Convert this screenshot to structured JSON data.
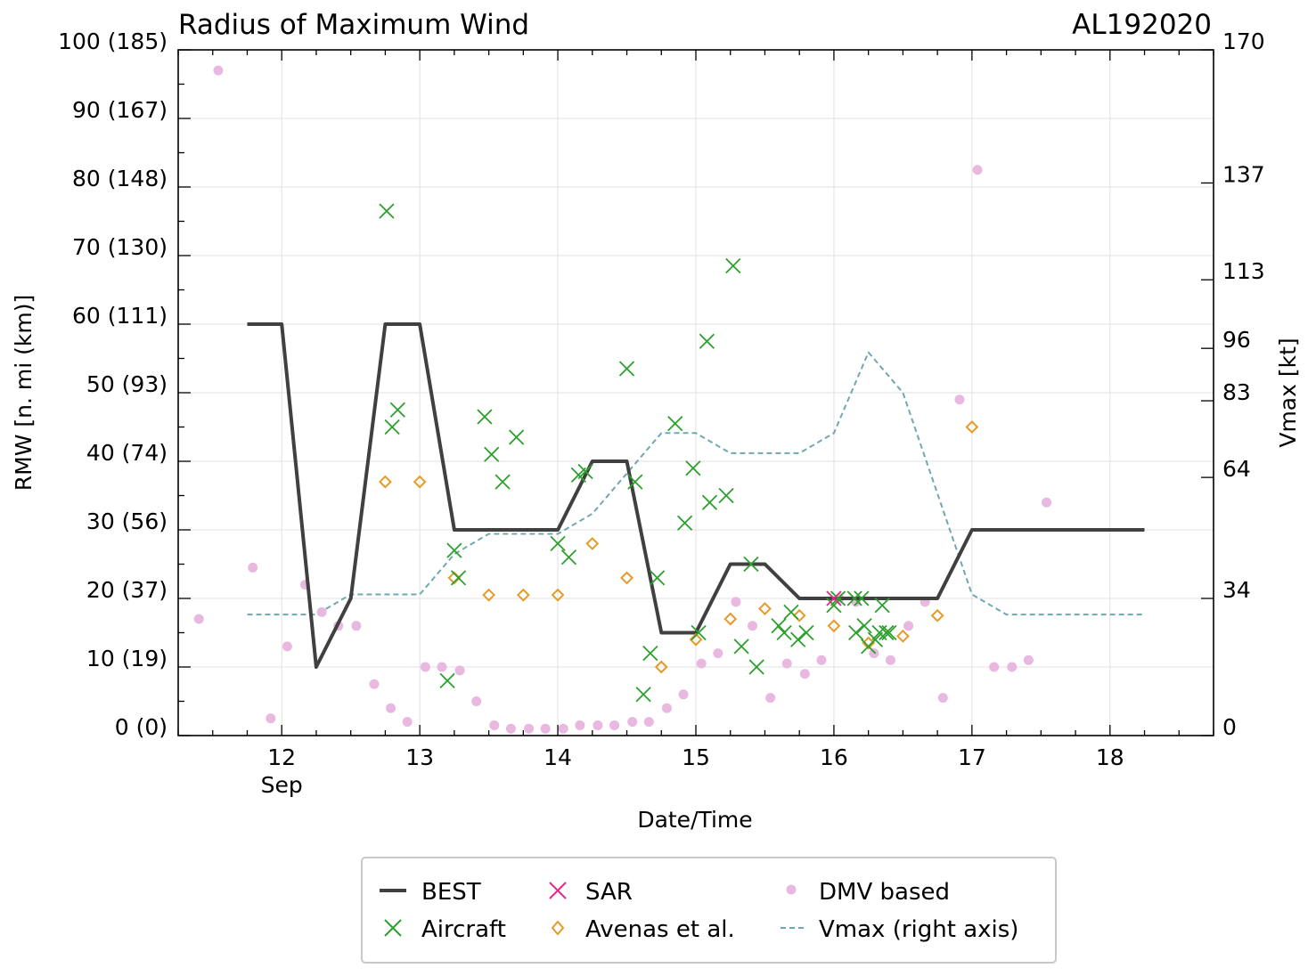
{
  "chart_data": {
    "type": "scatter",
    "title": "Radius of Maximum Wind",
    "storm_id": "AL192020",
    "xlabel": "Date/Time",
    "ylabel": "RMW [n. mi (km)]",
    "y2label": "Vmax [kt]",
    "xlim": [
      11.25,
      18.75
    ],
    "ylim": [
      0,
      100
    ],
    "y2lim": [
      0,
      170
    ],
    "grid": true,
    "legend_position": "bottom",
    "x_ticks": [
      {
        "value": 12,
        "label": "12",
        "sublabel": "Sep"
      },
      {
        "value": 13,
        "label": "13"
      },
      {
        "value": 14,
        "label": "14"
      },
      {
        "value": 15,
        "label": "15"
      },
      {
        "value": 16,
        "label": "16"
      },
      {
        "value": 17,
        "label": "17"
      },
      {
        "value": 18,
        "label": "18"
      }
    ],
    "y_ticks": [
      {
        "value": 0,
        "label": "0 (0)"
      },
      {
        "value": 10,
        "label": "10 (19)"
      },
      {
        "value": 20,
        "label": "20 (37)"
      },
      {
        "value": 30,
        "label": "30 (56)"
      },
      {
        "value": 40,
        "label": "40 (74)"
      },
      {
        "value": 50,
        "label": "50 (93)"
      },
      {
        "value": 60,
        "label": "60 (111)"
      },
      {
        "value": 70,
        "label": "70 (130)"
      },
      {
        "value": 80,
        "label": "80 (148)"
      },
      {
        "value": 90,
        "label": "90 (167)"
      },
      {
        "value": 100,
        "label": "100 (185)"
      }
    ],
    "y2_ticks": [
      {
        "value": 0,
        "label": "0"
      },
      {
        "value": 34,
        "label": "34"
      },
      {
        "value": 64,
        "label": "64"
      },
      {
        "value": 83,
        "label": "83"
      },
      {
        "value": 96,
        "label": "96"
      },
      {
        "value": 113,
        "label": "113"
      },
      {
        "value": 137,
        "label": "137"
      },
      {
        "value": 170,
        "label": "170"
      }
    ],
    "series": [
      {
        "name": "BEST",
        "kind": "line",
        "color": "#404040",
        "points": [
          [
            11.75,
            60
          ],
          [
            12.0,
            60
          ],
          [
            12.25,
            10
          ],
          [
            12.5,
            20
          ],
          [
            12.75,
            60
          ],
          [
            13.0,
            60
          ],
          [
            13.25,
            30
          ],
          [
            13.5,
            30
          ],
          [
            13.75,
            30
          ],
          [
            14.0,
            30
          ],
          [
            14.25,
            40
          ],
          [
            14.5,
            40
          ],
          [
            14.75,
            15
          ],
          [
            15.0,
            15
          ],
          [
            15.25,
            25
          ],
          [
            15.5,
            25
          ],
          [
            15.75,
            20
          ],
          [
            16.0,
            20
          ],
          [
            16.25,
            20
          ],
          [
            16.5,
            20
          ],
          [
            16.75,
            20
          ],
          [
            17.0,
            30
          ],
          [
            17.25,
            30
          ],
          [
            17.5,
            30
          ],
          [
            17.75,
            30
          ],
          [
            18.0,
            30
          ],
          [
            18.25,
            30
          ]
        ]
      },
      {
        "name": "Aircraft",
        "kind": "x",
        "color": "#2ca02c",
        "points": [
          [
            12.76,
            76.5
          ],
          [
            12.8,
            45
          ],
          [
            12.84,
            47.5
          ],
          [
            13.2,
            8
          ],
          [
            13.25,
            27
          ],
          [
            13.28,
            23
          ],
          [
            13.47,
            46.5
          ],
          [
            13.52,
            41
          ],
          [
            13.6,
            37
          ],
          [
            13.7,
            43.5
          ],
          [
            14.0,
            28
          ],
          [
            14.08,
            26
          ],
          [
            14.15,
            38
          ],
          [
            14.2,
            38.5
          ],
          [
            14.5,
            53.5
          ],
          [
            14.56,
            37
          ],
          [
            14.62,
            6
          ],
          [
            14.67,
            12
          ],
          [
            14.72,
            23
          ],
          [
            14.85,
            45.5
          ],
          [
            14.92,
            31
          ],
          [
            14.98,
            39
          ],
          [
            15.02,
            15
          ],
          [
            15.08,
            57.5
          ],
          [
            15.1,
            34
          ],
          [
            15.22,
            35
          ],
          [
            15.27,
            68.5
          ],
          [
            15.33,
            13
          ],
          [
            15.4,
            25
          ],
          [
            15.44,
            10
          ],
          [
            15.6,
            16
          ],
          [
            15.64,
            15
          ],
          [
            15.69,
            18
          ],
          [
            15.74,
            14
          ],
          [
            15.8,
            15
          ],
          [
            16.0,
            19
          ],
          [
            16.03,
            20
          ],
          [
            16.15,
            20
          ],
          [
            16.2,
            20
          ],
          [
            16.16,
            15
          ],
          [
            16.22,
            16
          ],
          [
            16.25,
            13
          ],
          [
            16.3,
            14
          ],
          [
            16.35,
            19
          ],
          [
            16.33,
            15
          ],
          [
            16.38,
            15
          ],
          [
            16.4,
            15
          ]
        ]
      },
      {
        "name": "SAR",
        "kind": "x",
        "color": "#e7298a",
        "points": [
          [
            16.0,
            20
          ]
        ]
      },
      {
        "name": "Avenas et al.",
        "kind": "diamond",
        "color": "#e69a28",
        "points": [
          [
            12.75,
            37
          ],
          [
            13.0,
            37
          ],
          [
            13.25,
            23
          ],
          [
            13.5,
            20.5
          ],
          [
            13.75,
            20.5
          ],
          [
            14.0,
            20.5
          ],
          [
            14.25,
            28
          ],
          [
            14.5,
            23
          ],
          [
            14.75,
            10
          ],
          [
            15.0,
            14
          ],
          [
            15.25,
            17
          ],
          [
            15.5,
            18.5
          ],
          [
            15.75,
            17.5
          ],
          [
            16.0,
            16
          ],
          [
            16.25,
            13.5
          ],
          [
            16.5,
            14.5
          ],
          [
            16.75,
            17.5
          ],
          [
            17.0,
            45
          ]
        ]
      },
      {
        "name": "DMV based",
        "kind": "dot",
        "color": "#e8b8e0",
        "points": [
          [
            11.4,
            17
          ],
          [
            11.54,
            97
          ],
          [
            11.79,
            24.5
          ],
          [
            11.92,
            2.5
          ],
          [
            12.04,
            13
          ],
          [
            12.17,
            22
          ],
          [
            12.29,
            18
          ],
          [
            12.41,
            16
          ],
          [
            12.54,
            16
          ],
          [
            12.67,
            7.5
          ],
          [
            12.79,
            4
          ],
          [
            12.91,
            2
          ],
          [
            13.04,
            10
          ],
          [
            13.16,
            10
          ],
          [
            13.29,
            9.5
          ],
          [
            13.41,
            5
          ],
          [
            13.54,
            1.5
          ],
          [
            13.66,
            1
          ],
          [
            13.79,
            1
          ],
          [
            13.91,
            1
          ],
          [
            14.04,
            1
          ],
          [
            14.16,
            1.5
          ],
          [
            14.29,
            1.5
          ],
          [
            14.41,
            1.5
          ],
          [
            14.54,
            2
          ],
          [
            14.66,
            2
          ],
          [
            14.79,
            4
          ],
          [
            14.91,
            6
          ],
          [
            15.04,
            10.5
          ],
          [
            15.16,
            12
          ],
          [
            15.29,
            19.5
          ],
          [
            15.41,
            16
          ],
          [
            15.54,
            5.5
          ],
          [
            15.66,
            10.5
          ],
          [
            15.79,
            9
          ],
          [
            15.91,
            11
          ],
          [
            16.04,
            20
          ],
          [
            16.16,
            19.5
          ],
          [
            16.29,
            12
          ],
          [
            16.41,
            11
          ],
          [
            16.54,
            16
          ],
          [
            16.66,
            19.5
          ],
          [
            16.79,
            5.5
          ],
          [
            16.91,
            49
          ],
          [
            17.04,
            82.5
          ],
          [
            17.16,
            10
          ],
          [
            17.29,
            10
          ],
          [
            17.41,
            11
          ],
          [
            17.54,
            34
          ]
        ]
      },
      {
        "name": "Vmax (right axis)",
        "kind": "dashed-line",
        "axis": "right",
        "color": "#6fa8b0",
        "points": [
          [
            11.75,
            30
          ],
          [
            12.0,
            30
          ],
          [
            12.25,
            30
          ],
          [
            12.5,
            35
          ],
          [
            12.75,
            35
          ],
          [
            13.0,
            35
          ],
          [
            13.25,
            45
          ],
          [
            13.5,
            50
          ],
          [
            13.75,
            50
          ],
          [
            14.0,
            50
          ],
          [
            14.25,
            55
          ],
          [
            14.5,
            65
          ],
          [
            14.75,
            75
          ],
          [
            15.0,
            75
          ],
          [
            15.25,
            70
          ],
          [
            15.5,
            70
          ],
          [
            15.75,
            70
          ],
          [
            16.0,
            75
          ],
          [
            16.25,
            95
          ],
          [
            16.5,
            85
          ],
          [
            16.75,
            60
          ],
          [
            17.0,
            35
          ],
          [
            17.25,
            30
          ],
          [
            17.5,
            30
          ],
          [
            17.75,
            30
          ],
          [
            18.0,
            30
          ],
          [
            18.25,
            30
          ]
        ]
      }
    ]
  }
}
